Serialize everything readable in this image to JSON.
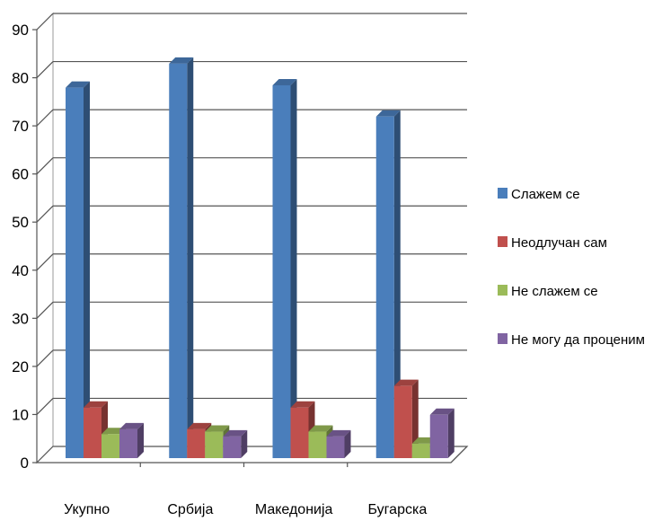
{
  "chart_data": {
    "type": "bar",
    "title": "",
    "xlabel": "",
    "ylabel": "",
    "ylim": [
      0,
      90
    ],
    "yticks": [
      0,
      10,
      20,
      30,
      40,
      50,
      60,
      70,
      80,
      90
    ],
    "categories": [
      "Укупно",
      "Србија",
      "Македонија",
      "Бугарска"
    ],
    "series": [
      {
        "name": "Слажем се",
        "values": [
          77,
          82,
          77.5,
          71
        ],
        "color": "#4a7ebb"
      },
      {
        "name": "Неодлучан сам",
        "values": [
          10.5,
          6,
          10.5,
          15
        ],
        "color": "#c0504d"
      },
      {
        "name": "Не слажем се",
        "values": [
          5,
          5.5,
          5.5,
          3
        ],
        "color": "#9bbb59"
      },
      {
        "name": "Не могу да проценим",
        "values": [
          6,
          4.5,
          4.5,
          9
        ],
        "color": "#8064a2"
      }
    ],
    "grid": true,
    "legend": "right",
    "style": "3d-clustered-column"
  }
}
